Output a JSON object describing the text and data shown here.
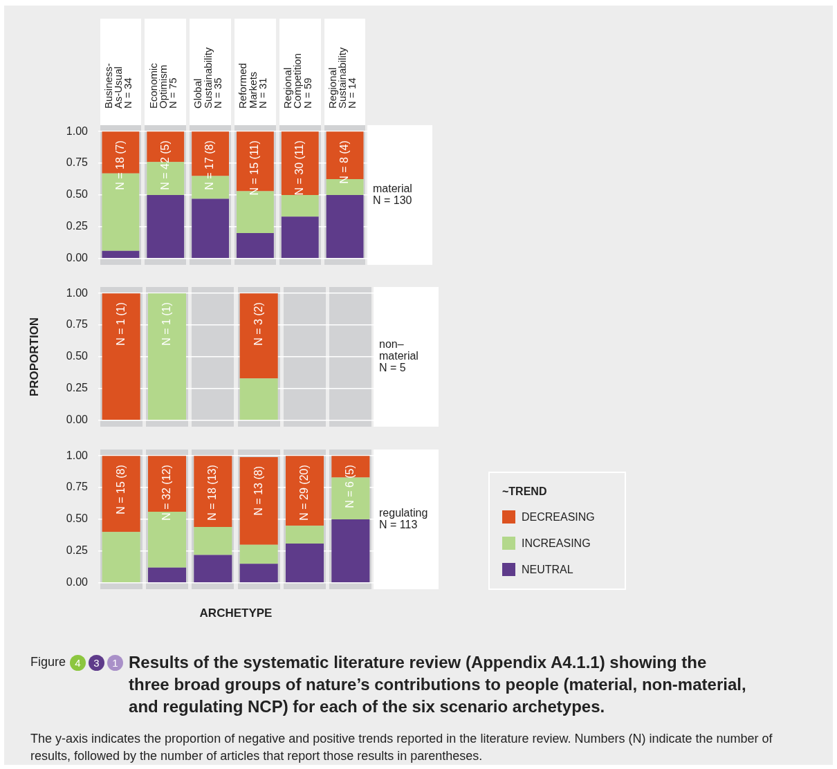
{
  "chart_data": [
    {
      "type": "bar",
      "stacked": true,
      "title": "material\nN = 130",
      "categories": [
        "Business-\nAs-Usual\nN = 34",
        "Economic\nOptimism\nN = 75",
        "Global\nSustainability\nN = 35",
        "Reformed\nMarkets\nN = 31",
        "Regional\nCompetition\nN = 59",
        "Regional\nSustainability\nN = 14"
      ],
      "series": [
        {
          "color": "#5e3b8a",
          "values": [
            0.06,
            0.5,
            0.47,
            0.2,
            0.33,
            0.5
          ]
        },
        {
          "color": "#b3d88b",
          "values": [
            0.61,
            0.26,
            0.18,
            0.33,
            0.17,
            0.125
          ]
        },
        {
          "color": "#dc5220",
          "values": [
            0.33,
            0.24,
            0.35,
            0.47,
            0.5,
            0.375
          ],
          "value_labels": [
            "N = 18 (7)",
            "N = 42 (5)",
            "N = 17 (8)",
            "N = 15 (11)",
            "N = 30 (11)",
            "N = 8 (4)"
          ]
        }
      ],
      "ylim": [
        -0.05,
        1.05
      ],
      "yticks": [
        {
          "value": 0,
          "label": "0.00"
        },
        {
          "value": 0.25,
          "label": "0.25"
        },
        {
          "value": 0.5,
          "label": "0.50"
        },
        {
          "value": 0.75,
          "label": "0.75"
        },
        {
          "value": 1,
          "label": "1.00"
        }
      ],
      "grid": "y"
    },
    {
      "type": "bar",
      "stacked": true,
      "title": "non–\nmaterial\nN = 5",
      "ylabel": "PROPORTION",
      "categories": [
        null,
        null,
        null,
        null,
        null,
        null
      ],
      "tick_labels": "y",
      "series": [
        {
          "color": "#5e3b8a",
          "values": [
            0,
            0,
            null,
            0,
            null,
            null
          ]
        },
        {
          "color": "#b3d88b",
          "values": [
            0,
            1,
            null,
            0.33,
            null,
            null
          ],
          "value_labels": [
            null,
            "N = 1 (1)",
            null,
            null,
            null,
            null
          ]
        },
        {
          "color": "#dc5220",
          "values": [
            1,
            0,
            null,
            0.67,
            null,
            null
          ],
          "value_labels": [
            "N = 1 (1)",
            null,
            null,
            "N = 3 (2)",
            null,
            null
          ]
        }
      ],
      "ylim": [
        -0.05,
        1.05
      ],
      "yticks": [
        {
          "value": 0,
          "label": "0.00"
        },
        {
          "value": 0.25,
          "label": "0.25"
        },
        {
          "value": 0.5,
          "label": "0.50"
        },
        {
          "value": 0.75,
          "label": "0.75"
        },
        {
          "value": 1,
          "label": "1.00"
        }
      ],
      "grid": "y"
    },
    {
      "type": "bar",
      "stacked": true,
      "title": "regulating\nN = 113",
      "xlabel": "ARCHETYPE",
      "categories": [
        null,
        null,
        null,
        null,
        null,
        null
      ],
      "tick_labels": "y",
      "legend": "right",
      "legend_title": "~TREND",
      "series": [
        {
          "name": "NEUTRAL",
          "color": "#5e3b8a",
          "values": [
            0,
            0.12,
            0.22,
            0.15,
            0.31,
            0.5
          ]
        },
        {
          "name": "INCREASING",
          "color": "#b3d88b",
          "values": [
            0.4,
            0.44,
            0.22,
            0.15,
            0.14,
            0.33
          ]
        },
        {
          "name": "DECREASING",
          "color": "#dc5220",
          "values": [
            0.6,
            0.44,
            0.56,
            0.69,
            0.55,
            0.17
          ],
          "value_labels": [
            "N = 15 (8)",
            "N = 32 (12)",
            "N = 18 (13)",
            "N = 13 (8)",
            "N = 29 (20)",
            "N = 6 (5)"
          ]
        }
      ],
      "ylim": [
        -0.05,
        1.05
      ],
      "yticks": [
        {
          "value": 0,
          "label": "0.00"
        },
        {
          "value": 0.25,
          "label": "0.25"
        },
        {
          "value": 0.5,
          "label": "0.50"
        },
        {
          "value": 0.75,
          "label": "0.75"
        },
        {
          "value": 1,
          "label": "1.00"
        }
      ],
      "grid": "y",
      "annotations": [
        "Figure",
        "4",
        "3",
        "1",
        "Results of the systematic literature review (Appendix A4.1.1) showing the three broad groups of nature’s contributions to people (material, non-material, and regulating NCP) for each of the six scenario archetypes.",
        "The y-axis indicates the proportion of negative and positive trends reported in the literature review. Numbers (N) indicate the number of results, followed by the number of articles that report those results in parentheses."
      ]
    }
  ]
}
